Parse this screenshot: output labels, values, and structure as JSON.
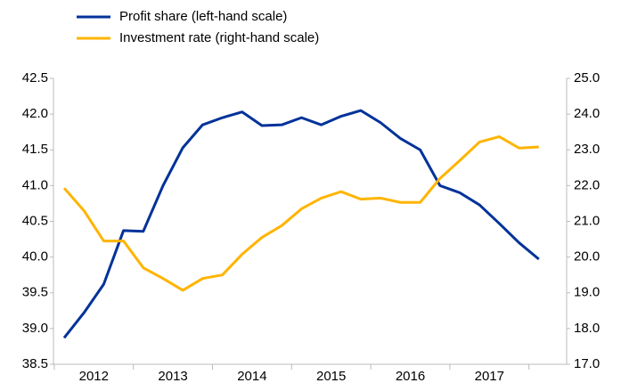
{
  "chart_data": {
    "type": "line",
    "categories": [
      "2012",
      null,
      null,
      null,
      "2013",
      null,
      null,
      null,
      "2014",
      null,
      null,
      null,
      "2015",
      null,
      null,
      null,
      "2016",
      null,
      null,
      null,
      "2017",
      null,
      null,
      null,
      null
    ],
    "series": [
      {
        "name": "Profit share (left-hand scale)",
        "color": "#003299",
        "values": [
          38.87,
          39.22,
          39.62,
          40.37,
          40.36,
          41.0,
          41.53,
          41.85,
          41.95,
          42.03,
          41.84,
          41.85,
          41.95,
          41.85,
          41.97,
          42.05,
          41.88,
          41.66,
          41.5,
          41.0,
          40.9,
          40.73,
          40.47,
          40.2,
          39.97
        ]
      },
      {
        "name": "Investment rate (right-hand scale)",
        "color": "#ffb400",
        "axis": "y2",
        "values": [
          21.93,
          21.3,
          20.45,
          20.45,
          19.7,
          19.4,
          19.07,
          19.4,
          19.5,
          20.08,
          20.55,
          20.88,
          21.35,
          21.65,
          21.83,
          21.62,
          21.65,
          21.53,
          21.53,
          22.2,
          22.7,
          23.22,
          23.37,
          23.05,
          23.08
        ]
      }
    ],
    "ylim": [
      38.5,
      42.5
    ],
    "yticks": [
      {
        "value": 38.5,
        "label": "38.5"
      },
      {
        "value": 39,
        "label": "39.0"
      },
      {
        "value": 39.5,
        "label": "39.5"
      },
      {
        "value": 40,
        "label": "40.0"
      },
      {
        "value": 40.5,
        "label": "40.5"
      },
      {
        "value": 41,
        "label": "41.0"
      },
      {
        "value": 41.5,
        "label": "41.5"
      },
      {
        "value": 42,
        "label": "42.0"
      },
      {
        "value": 42.5,
        "label": "42.5"
      }
    ],
    "y2lim": [
      17,
      25
    ],
    "y2ticks": [
      {
        "value": 17,
        "label": "17.0"
      },
      {
        "value": 18,
        "label": "18.0"
      },
      {
        "value": 19,
        "label": "19.0"
      },
      {
        "value": 20,
        "label": "20.0"
      },
      {
        "value": 21,
        "label": "21.0"
      },
      {
        "value": 22,
        "label": "22.0"
      },
      {
        "value": 23,
        "label": "23.0"
      },
      {
        "value": 24,
        "label": "24.0"
      },
      {
        "value": 25,
        "label": "25.0"
      }
    ],
    "legend": "top-left"
  }
}
